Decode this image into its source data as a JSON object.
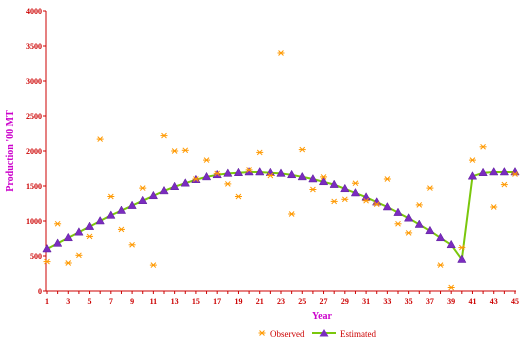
{
  "chart_data": {
    "type": "line",
    "xlabel": "Year",
    "ylabel": "Production '00 MT",
    "ylim": [
      0,
      4000
    ],
    "xlim": [
      1,
      45
    ],
    "yticks": [
      0,
      500,
      1000,
      1500,
      2000,
      2500,
      3000,
      3500,
      4000
    ],
    "xticks": [
      1,
      3,
      5,
      7,
      9,
      11,
      13,
      15,
      17,
      19,
      21,
      23,
      25,
      27,
      29,
      31,
      33,
      35,
      37,
      39,
      41,
      43,
      45
    ],
    "grid": false,
    "legend_position": "bottom",
    "x": [
      1,
      2,
      3,
      4,
      5,
      6,
      7,
      8,
      9,
      10,
      11,
      12,
      13,
      14,
      15,
      16,
      17,
      18,
      19,
      20,
      21,
      22,
      23,
      24,
      25,
      26,
      27,
      28,
      29,
      30,
      31,
      32,
      33,
      34,
      35,
      36,
      37,
      38,
      39,
      40,
      41,
      42,
      43,
      44,
      45
    ],
    "series": [
      {
        "name": "Observed",
        "marker": "asterisk",
        "color": "#ff9900",
        "values": [
          420,
          960,
          400,
          510,
          780,
          2170,
          1350,
          880,
          660,
          1470,
          370,
          2220,
          2000,
          2010,
          1600,
          1870,
          1680,
          1530,
          1350,
          1730,
          1980,
          1650,
          3400,
          1100,
          2020,
          1450,
          1630,
          1280,
          1310,
          1540,
          1290,
          1240,
          1600,
          960,
          830,
          1230,
          1470,
          370,
          50,
          620,
          1870,
          2060,
          1200,
          1520,
          1670
        ]
      },
      {
        "name": "Estimated",
        "marker": "triangle",
        "color": "#7b2cbf",
        "line_color": "#7ac70c",
        "values": [
          600,
          680,
          760,
          840,
          920,
          1000,
          1080,
          1150,
          1220,
          1290,
          1360,
          1430,
          1490,
          1540,
          1590,
          1630,
          1660,
          1680,
          1690,
          1700,
          1700,
          1690,
          1680,
          1660,
          1630,
          1600,
          1560,
          1520,
          1460,
          1400,
          1340,
          1270,
          1200,
          1120,
          1040,
          950,
          860,
          760,
          660,
          450,
          1640,
          1690,
          1700,
          1700,
          1700
        ]
      }
    ]
  }
}
